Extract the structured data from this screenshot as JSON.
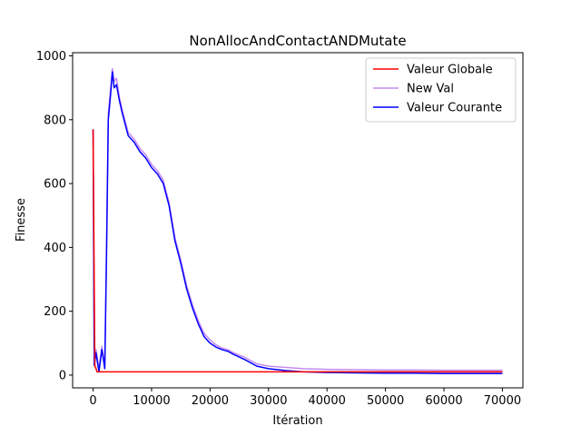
{
  "chart_data": {
    "type": "line",
    "title": "NonAllocAndContactANDMutate",
    "xlabel": "Itération",
    "ylabel": "Finesse",
    "xlim": [
      -3500,
      73500
    ],
    "ylim": [
      -40,
      1010
    ],
    "xticks": [
      0,
      10000,
      20000,
      30000,
      40000,
      50000,
      60000,
      70000
    ],
    "yticks": [
      0,
      200,
      400,
      600,
      800,
      1000
    ],
    "grid": false,
    "legend_position": "top-right",
    "series": [
      {
        "name": "Valeur Globale",
        "color": "#ff0000",
        "x": [
          0,
          300,
          700,
          70000
        ],
        "y": [
          770,
          30,
          10,
          10
        ]
      },
      {
        "name": "New Val",
        "color": "#c58af0",
        "x": [
          0,
          200,
          500,
          1000,
          1500,
          2000,
          2300,
          2600,
          3000,
          3300,
          3600,
          4000,
          4500,
          5000,
          6000,
          7000,
          8000,
          9000,
          10000,
          11000,
          12000,
          13000,
          14000,
          15000,
          16000,
          17000,
          18000,
          19000,
          20000,
          21000,
          22000,
          23000,
          24000,
          26000,
          28000,
          30000,
          33000,
          36000,
          40000,
          45000,
          50000,
          55000,
          60000,
          65000,
          70000
        ],
        "y": [
          770,
          40,
          80,
          20,
          90,
          30,
          400,
          820,
          900,
          960,
          920,
          930,
          870,
          830,
          760,
          740,
          710,
          690,
          660,
          640,
          610,
          540,
          430,
          360,
          280,
          220,
          170,
          130,
          110,
          95,
          85,
          80,
          70,
          55,
          35,
          28,
          24,
          20,
          18,
          17,
          16,
          16,
          15,
          15,
          15
        ]
      },
      {
        "name": "Valeur Courante",
        "color": "#0000ff",
        "x": [
          0,
          200,
          500,
          1000,
          1500,
          2000,
          2300,
          2600,
          3000,
          3300,
          3600,
          4000,
          4500,
          5000,
          6000,
          7000,
          8000,
          9000,
          10000,
          11000,
          12000,
          13000,
          14000,
          15000,
          16000,
          17000,
          18000,
          19000,
          20000,
          21000,
          22000,
          23000,
          24000,
          26000,
          28000,
          30000,
          33000,
          36000,
          40000,
          45000,
          50000,
          55000,
          60000,
          65000,
          70000
        ],
        "y": [
          770,
          30,
          70,
          10,
          80,
          20,
          380,
          800,
          880,
          950,
          900,
          910,
          860,
          820,
          750,
          730,
          700,
          680,
          650,
          630,
          600,
          530,
          420,
          350,
          270,
          210,
          160,
          120,
          100,
          88,
          80,
          75,
          65,
          48,
          28,
          20,
          14,
          10,
          8,
          7,
          6,
          6,
          5,
          5,
          5
        ]
      }
    ]
  }
}
